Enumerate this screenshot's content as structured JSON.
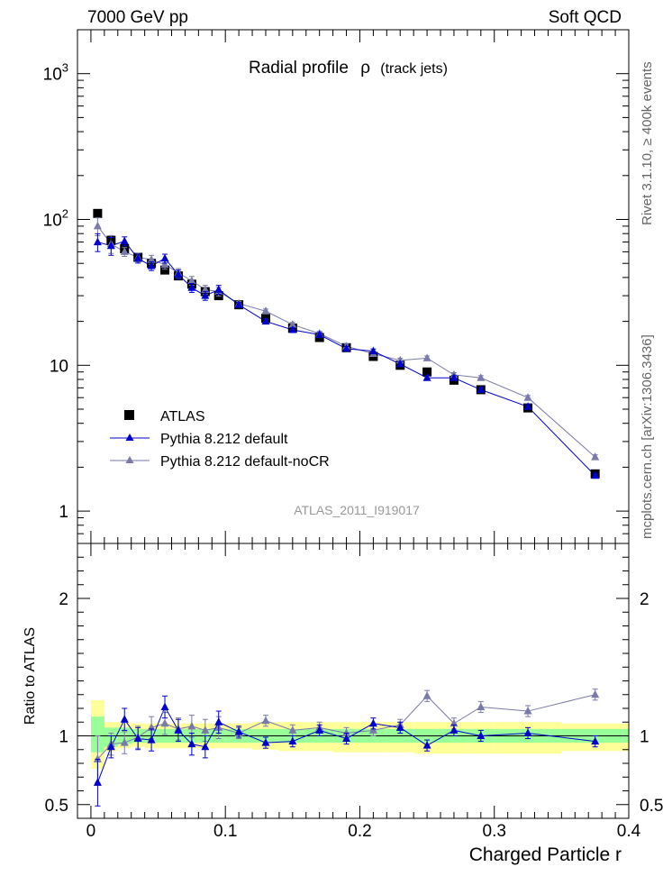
{
  "header": {
    "left": "7000 GeV pp",
    "right": "Soft QCD"
  },
  "side_labels": {
    "top": "Rivet 3.1.10, ≥ 400k events",
    "bottom": "mcplots.cern.ch [arXiv:1306.3436]"
  },
  "chart_data": [
    {
      "type": "scatter",
      "title": "Radial profile",
      "title_symbol": "ρ",
      "title_suffix": "(track jets)",
      "watermark": "ATLAS_2011_I919017",
      "yscale": "log",
      "ylim": [
        0.6,
        2000
      ],
      "xlim": [
        -0.01,
        0.4
      ],
      "y_ticks": [
        {
          "v": 1,
          "label": "1"
        },
        {
          "v": 10,
          "label": "10"
        },
        {
          "v": 100,
          "label": "10",
          "sup": "2"
        },
        {
          "v": 1000,
          "label": "10",
          "sup": "3"
        }
      ],
      "legend_position": "lower-left",
      "series": [
        {
          "name": "ATLAS",
          "marker": "square",
          "color": "#000000",
          "x": [
            0.005,
            0.015,
            0.025,
            0.035,
            0.045,
            0.055,
            0.065,
            0.075,
            0.085,
            0.095,
            0.11,
            0.13,
            0.15,
            0.17,
            0.19,
            0.21,
            0.23,
            0.25,
            0.27,
            0.29,
            0.325,
            0.375
          ],
          "y": [
            110,
            72,
            63,
            55,
            50,
            45,
            41,
            36,
            32,
            30,
            26,
            21,
            18,
            15.5,
            13.2,
            11.5,
            10.0,
            9.0,
            7.9,
            6.8,
            5.1,
            1.8
          ]
        },
        {
          "name": "Pythia 8.212 default",
          "marker": "triangle",
          "color": "#0000cc",
          "x": [
            0.005,
            0.015,
            0.025,
            0.035,
            0.045,
            0.055,
            0.065,
            0.075,
            0.085,
            0.095,
            0.11,
            0.13,
            0.15,
            0.17,
            0.19,
            0.21,
            0.23,
            0.25,
            0.27,
            0.29,
            0.325,
            0.375
          ],
          "y": [
            70,
            66,
            71,
            54,
            48,
            54,
            42,
            34,
            30,
            33,
            26,
            20,
            17.5,
            16.2,
            13.0,
            12.5,
            10.2,
            8.2,
            8.2,
            6.8,
            5.2,
            1.75
          ]
        },
        {
          "name": "Pythia 8.212 default-noCR",
          "marker": "triangle",
          "color": "#7a7aaa",
          "x": [
            0.005,
            0.015,
            0.025,
            0.035,
            0.045,
            0.055,
            0.065,
            0.075,
            0.085,
            0.095,
            0.11,
            0.13,
            0.15,
            0.17,
            0.19,
            0.21,
            0.23,
            0.25,
            0.27,
            0.29,
            0.325,
            0.375
          ],
          "y": [
            90,
            68,
            60,
            55,
            53,
            49,
            43,
            38,
            33,
            32,
            26.5,
            23.5,
            19,
            16.5,
            13.5,
            12.0,
            10.8,
            11.2,
            8.6,
            8.2,
            6.0,
            2.35
          ]
        }
      ]
    },
    {
      "type": "scatter",
      "ylabel": "Ratio to ATLAS",
      "xlabel": "Charged Particle r",
      "ylim": [
        0.4,
        2.4
      ],
      "xlim": [
        -0.01,
        0.4
      ],
      "x_ticks": [
        {
          "v": 0,
          "label": "0"
        },
        {
          "v": 0.1,
          "label": "0.1"
        },
        {
          "v": 0.2,
          "label": "0.2"
        },
        {
          "v": 0.3,
          "label": "0.3"
        },
        {
          "v": 0.4,
          "label": "0.4"
        }
      ],
      "y_ticks": [
        {
          "v": 0.5,
          "label": "0.5"
        },
        {
          "v": 1,
          "label": "1"
        },
        {
          "v": 2,
          "label": "2"
        }
      ],
      "bands": {
        "x_edges": [
          0.0,
          0.01,
          0.02,
          0.03,
          0.04,
          0.05,
          0.06,
          0.07,
          0.08,
          0.09,
          0.1,
          0.12,
          0.14,
          0.16,
          0.18,
          0.2,
          0.22,
          0.24,
          0.26,
          0.28,
          0.3,
          0.35,
          0.4
        ],
        "green_lo": [
          0.88,
          0.92,
          0.94,
          0.95,
          0.95,
          0.95,
          0.95,
          0.95,
          0.95,
          0.95,
          0.95,
          0.95,
          0.95,
          0.95,
          0.95,
          0.95,
          0.95,
          0.95,
          0.95,
          0.95,
          0.95,
          0.95
        ],
        "green_hi": [
          1.14,
          1.06,
          1.06,
          1.05,
          1.05,
          1.05,
          1.05,
          1.05,
          1.05,
          1.05,
          1.05,
          1.05,
          1.05,
          1.05,
          1.05,
          1.05,
          1.05,
          1.05,
          1.05,
          1.05,
          1.05,
          1.05
        ],
        "yellow_lo": [
          0.76,
          0.89,
          0.91,
          0.92,
          0.91,
          0.91,
          0.91,
          0.91,
          0.91,
          0.91,
          0.91,
          0.9,
          0.89,
          0.89,
          0.88,
          0.88,
          0.88,
          0.87,
          0.87,
          0.87,
          0.87,
          0.89
        ],
        "yellow_hi": [
          1.26,
          1.1,
          1.1,
          1.09,
          1.09,
          1.09,
          1.09,
          1.09,
          1.09,
          1.09,
          1.09,
          1.1,
          1.1,
          1.1,
          1.1,
          1.1,
          1.1,
          1.1,
          1.1,
          1.1,
          1.1,
          1.09
        ]
      },
      "series": [
        {
          "name": "Pythia 8.212 default",
          "color": "#0000cc",
          "x": [
            0.005,
            0.015,
            0.025,
            0.035,
            0.045,
            0.055,
            0.065,
            0.075,
            0.085,
            0.095,
            0.11,
            0.13,
            0.15,
            0.17,
            0.19,
            0.21,
            0.23,
            0.25,
            0.27,
            0.29,
            0.325,
            0.375
          ],
          "y": [
            0.66,
            0.92,
            1.12,
            0.98,
            0.97,
            1.21,
            1.04,
            0.94,
            0.92,
            1.1,
            1.03,
            0.95,
            0.96,
            1.04,
            0.98,
            1.09,
            1.06,
            0.93,
            1.04,
            1.0,
            1.02,
            0.96
          ]
        },
        {
          "name": "Pythia 8.212 default-noCR",
          "color": "#7a7aaa",
          "x": [
            0.005,
            0.015,
            0.025,
            0.035,
            0.045,
            0.055,
            0.065,
            0.075,
            0.085,
            0.095,
            0.11,
            0.13,
            0.15,
            0.17,
            0.19,
            0.21,
            0.23,
            0.25,
            0.27,
            0.29,
            0.325,
            0.375
          ],
          "y": [
            0.83,
            0.94,
            0.95,
            0.99,
            1.06,
            1.09,
            1.05,
            1.07,
            1.04,
            1.06,
            1.02,
            1.11,
            1.04,
            1.06,
            1.02,
            1.04,
            1.08,
            1.29,
            1.09,
            1.21,
            1.18,
            1.3
          ]
        }
      ]
    }
  ]
}
